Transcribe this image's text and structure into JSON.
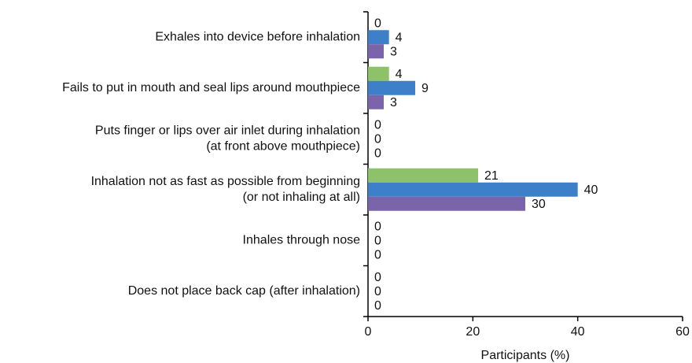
{
  "chart_data": {
    "type": "barh",
    "categories": [
      [
        "Exhales into device before inhalation"
      ],
      [
        "Fails to put in mouth and seal lips around mouthpiece"
      ],
      [
        "Puts finger or lips over air inlet during inhalation",
        "(at front above mouthpiece)"
      ],
      [
        "Inhalation not as fast as possible from beginning",
        "(or not inhaling at all)"
      ],
      [
        "Inhales through nose"
      ],
      [
        "Does not place back cap (after inhalation)"
      ]
    ],
    "series": [
      {
        "color": "#8dc26a",
        "values": [
          0,
          4,
          0,
          21,
          0,
          0
        ]
      },
      {
        "color": "#3d80c9",
        "values": [
          4,
          9,
          0,
          40,
          0,
          0
        ]
      },
      {
        "color": "#7b65aa",
        "values": [
          3,
          3,
          0,
          30,
          0,
          0
        ]
      }
    ],
    "xlabel": "Participants (%)",
    "xlim": [
      0,
      60
    ],
    "xticks": [
      0,
      20,
      40,
      60
    ],
    "grid": false
  }
}
